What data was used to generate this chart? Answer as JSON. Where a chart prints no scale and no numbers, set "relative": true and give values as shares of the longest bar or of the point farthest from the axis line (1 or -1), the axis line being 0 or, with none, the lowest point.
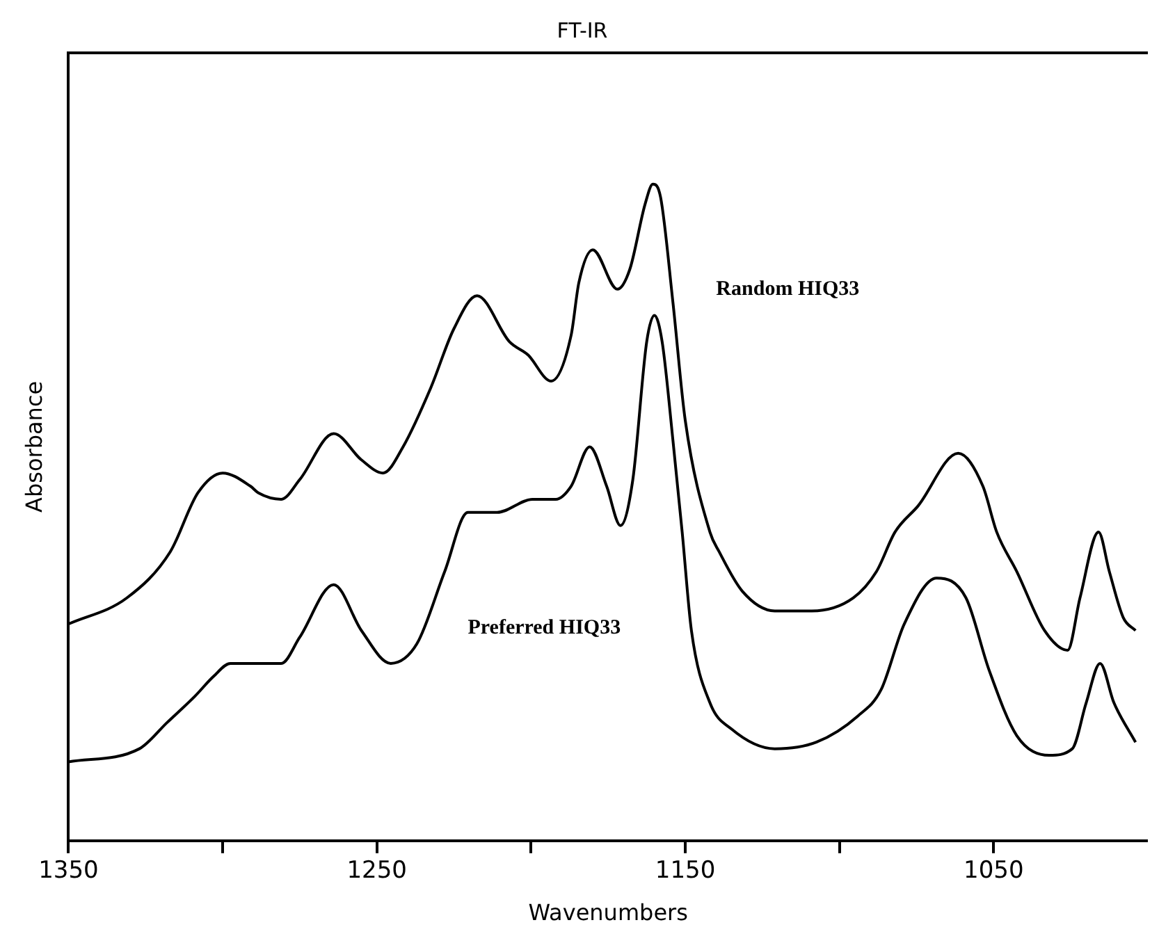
{
  "chart_data": {
    "type": "line",
    "title": "FT-IR",
    "xlabel": "Wavenumbers",
    "ylabel": "Absorbance",
    "relative": true,
    "legend": false,
    "grid": false,
    "xlim": [
      1350,
      1000
    ],
    "xticks": [
      1350,
      {
        "value": 1300,
        "label": null
      },
      1250,
      {
        "value": 1200,
        "label": null
      },
      1150,
      {
        "value": 1100,
        "label": null
      },
      1050
    ],
    "series": [
      {
        "name": "Random HIQ33",
        "color": "#000000",
        "x": [
          1350,
          1331,
          1317,
          1308,
          1300,
          1291,
          1288.5,
          1281,
          1275,
          1264,
          1255,
          1248,
          1241.5,
          1232.5,
          1225,
          1217.5,
          1207,
          1201,
          1193.5,
          1187,
          1184.5,
          1180,
          1172,
          1168,
          1163,
          1160.5,
          1158,
          1154,
          1150,
          1142,
          1139,
          1131.5,
          1121,
          1109,
          1095.5,
          1088,
          1082,
          1074.5,
          1061.5,
          1053.5,
          1049,
          1042.5,
          1033.5,
          1026,
          1022,
          1016,
          1012.5,
          1008,
          1004
        ],
        "values": [
          0.33,
          0.37,
          0.44,
          0.53,
          0.56,
          0.54,
          0.53,
          0.52,
          0.55,
          0.62,
          0.58,
          0.56,
          0.6,
          0.69,
          0.78,
          0.83,
          0.76,
          0.74,
          0.7,
          0.77,
          0.85,
          0.9,
          0.84,
          0.87,
          0.97,
          1,
          0.98,
          0.82,
          0.64,
          0.47,
          0.44,
          0.38,
          0.35,
          0.35,
          0.37,
          0.41,
          0.47,
          0.51,
          0.59,
          0.54,
          0.47,
          0.41,
          0.32,
          0.29,
          0.37,
          0.47,
          0.41,
          0.34,
          0.32
        ]
      },
      {
        "name": "Preferred HIQ33",
        "color": "#000000",
        "x": [
          1350,
          1327,
          1318,
          1309,
          1303,
          1297.5,
          1281,
          1275,
          1264,
          1255,
          1245.5,
          1237,
          1228,
          1220.5,
          1216.5,
          1211,
          1199.5,
          1192,
          1187,
          1181,
          1175.5,
          1171,
          1167,
          1162.5,
          1160,
          1157.5,
          1154,
          1151,
          1148,
          1142,
          1135,
          1121,
          1107.5,
          1094,
          1086.5,
          1079,
          1068.5,
          1059,
          1051.5,
          1042.5,
          1032,
          1024.5,
          1020,
          1015.5,
          1011,
          1004
        ],
        "values": [
          0.12,
          0.14,
          0.18,
          0.22,
          0.25,
          0.27,
          0.27,
          0.31,
          0.39,
          0.32,
          0.27,
          0.3,
          0.41,
          0.5,
          0.5,
          0.5,
          0.52,
          0.52,
          0.54,
          0.6,
          0.54,
          0.48,
          0.55,
          0.76,
          0.8,
          0.76,
          0.61,
          0.47,
          0.32,
          0.21,
          0.17,
          0.14,
          0.15,
          0.19,
          0.23,
          0.33,
          0.4,
          0.37,
          0.26,
          0.16,
          0.13,
          0.14,
          0.21,
          0.27,
          0.21,
          0.15
        ]
      }
    ]
  }
}
